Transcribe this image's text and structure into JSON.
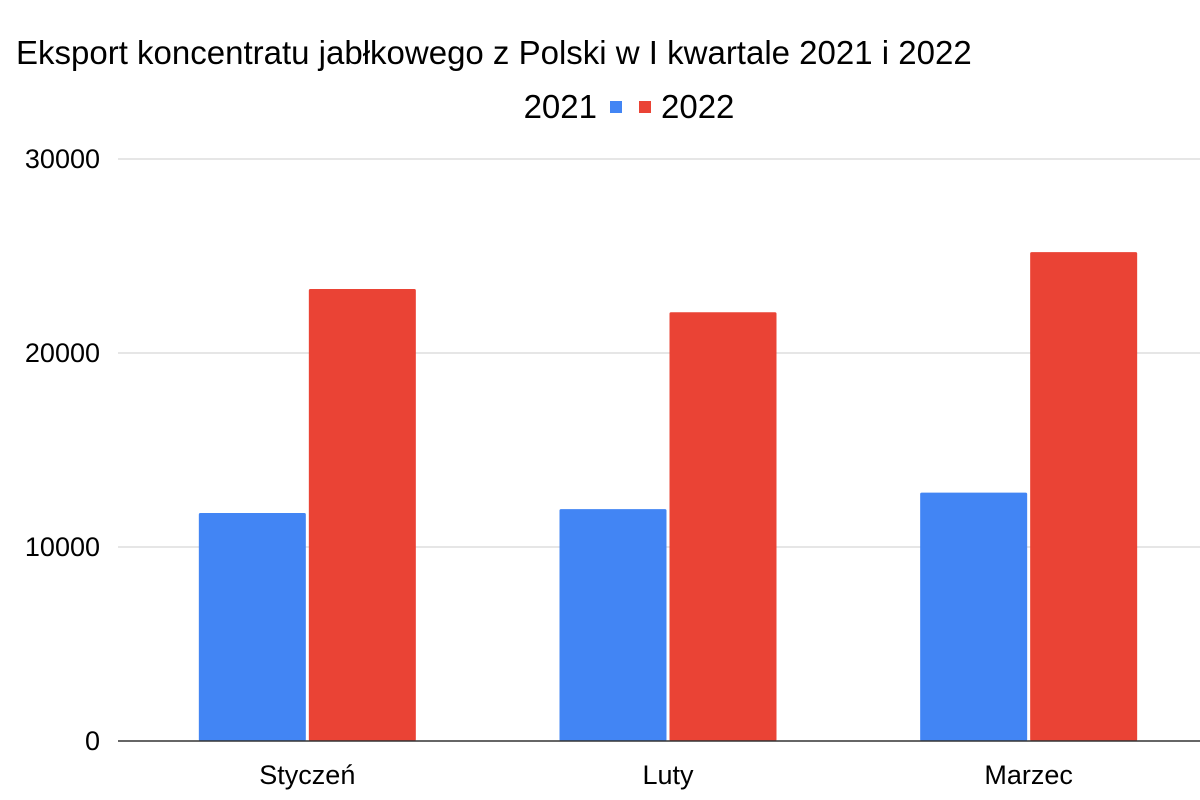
{
  "chart_data": {
    "type": "bar",
    "title": "Eksport koncentratu jabłkowego z Polski w I kwartale 2021 i 2022",
    "xlabel": "",
    "ylabel": "",
    "categories": [
      "Styczeń",
      "Luty",
      "Marzec"
    ],
    "series": [
      {
        "name": "2021",
        "color": "#4285f4",
        "values": [
          11750,
          11950,
          12800
        ]
      },
      {
        "name": "2022",
        "color": "#ea4335",
        "values": [
          23300,
          22100,
          25200
        ]
      }
    ],
    "ylim": [
      0,
      30000
    ],
    "yticks": [
      "0",
      "10000",
      "20000",
      "30000"
    ],
    "grid": true,
    "legend_position": "top-center"
  }
}
